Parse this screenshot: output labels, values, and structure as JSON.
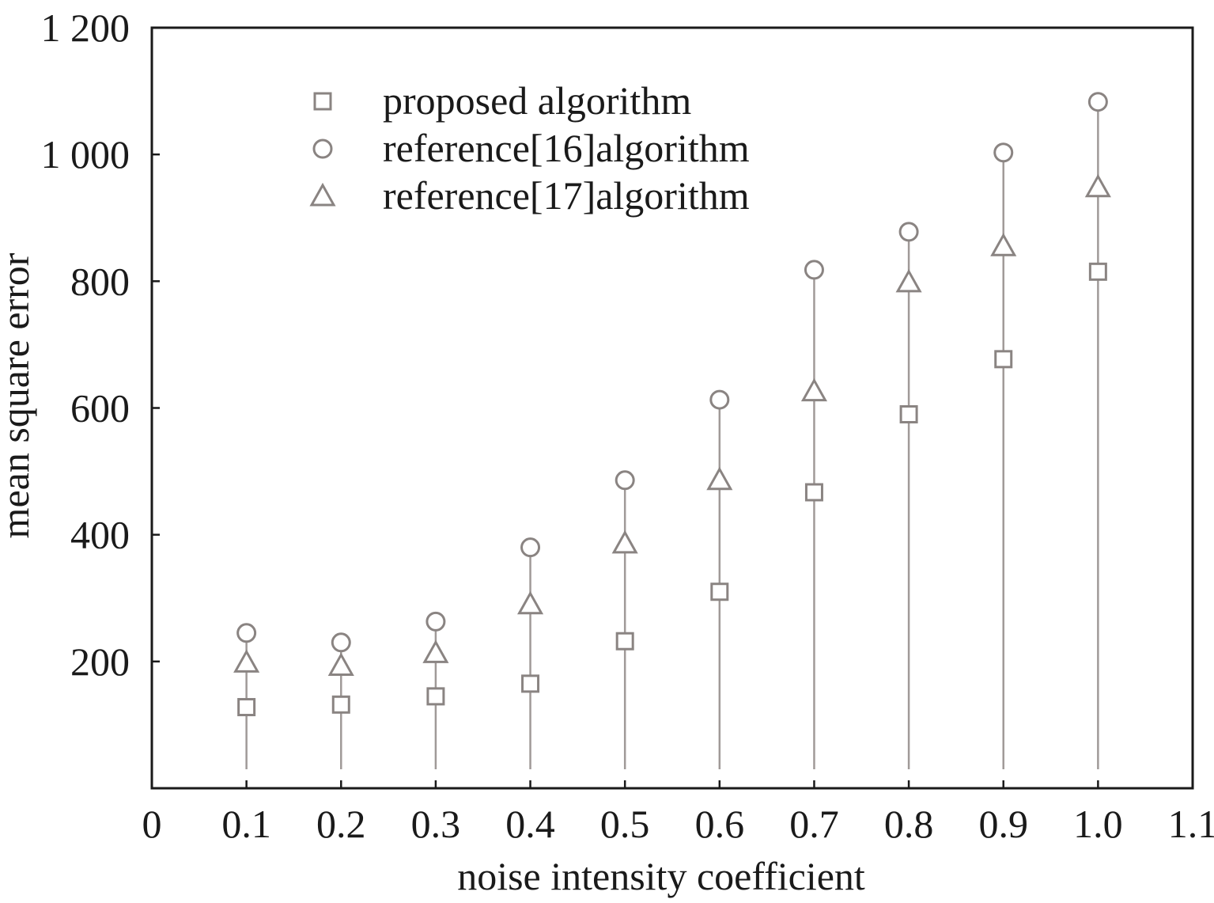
{
  "chart_data": {
    "type": "scatter",
    "title": "",
    "xlabel": "noise intensity coefficient",
    "ylabel": "mean square error",
    "xlim": [
      0,
      1.1
    ],
    "ylim": [
      0,
      1200
    ],
    "x_ticks": [
      "0",
      "0.1",
      "0.2",
      "0.3",
      "0.4",
      "0.5",
      "0.6",
      "0.7",
      "0.8",
      "0.9",
      "1.0",
      "1.1"
    ],
    "x_tick_values": [
      0,
      0.1,
      0.2,
      0.3,
      0.4,
      0.5,
      0.6,
      0.7,
      0.8,
      0.9,
      1.0,
      1.1
    ],
    "y_ticks": [
      "200",
      "400",
      "600",
      "800",
      "1 000",
      "1 200"
    ],
    "y_tick_values": [
      200,
      400,
      600,
      800,
      1000,
      1200
    ],
    "grid": false,
    "legend_position": "top-left",
    "x": [
      0.1,
      0.2,
      0.3,
      0.4,
      0.5,
      0.6,
      0.7,
      0.8,
      0.9,
      1.0
    ],
    "series": [
      {
        "name": "proposed algorithm",
        "marker": "square",
        "values": [
          128,
          132,
          145,
          165,
          232,
          310,
          467,
          590,
          677,
          815
        ]
      },
      {
        "name": "reference[16]algorithm",
        "marker": "circle",
        "values": [
          245,
          230,
          263,
          380,
          486,
          613,
          818,
          878,
          1003,
          1083
        ]
      },
      {
        "name": "reference[17]algorithm",
        "marker": "triangle",
        "values": [
          198,
          193,
          213,
          290,
          386,
          486,
          626,
          798,
          855,
          948
        ]
      }
    ],
    "colors": {
      "marker_stroke": "#8a8482",
      "stem": "#a09a98",
      "axis": "#1a1a1a"
    }
  }
}
